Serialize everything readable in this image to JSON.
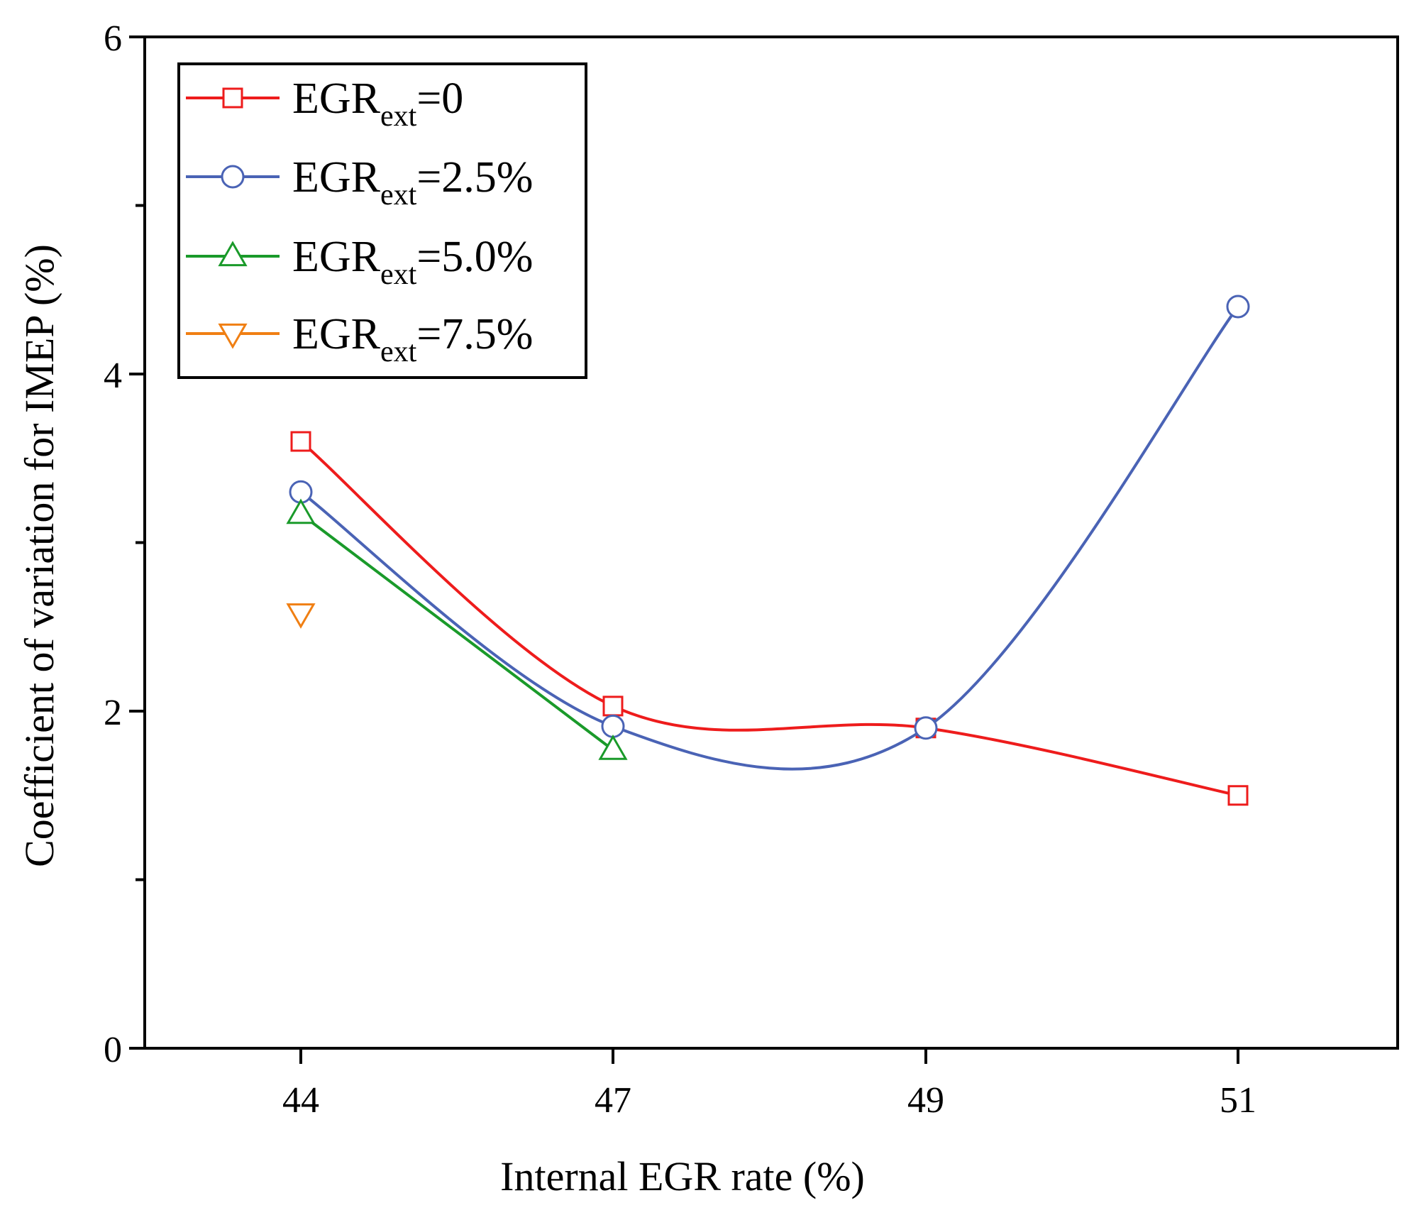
{
  "chart_data": {
    "type": "line",
    "title": "",
    "xlabel": "Internal EGR rate (%)",
    "ylabel": "Coefficient of variation for IMEP (%)",
    "categories": [
      "44",
      "47",
      "49",
      "51"
    ],
    "ylim": [
      0,
      6
    ],
    "y_ticks": [
      "0",
      "2",
      "4",
      "6"
    ],
    "y_minor_ticks": [
      1,
      3,
      5
    ],
    "grid": false,
    "legend_position": "top-left",
    "series": [
      {
        "name": "EGRext=0",
        "label_main": "EGR",
        "label_sub": "ext",
        "label_suffix": "=0",
        "color": "#ee1c1c",
        "marker": "square",
        "curve": "smooth",
        "values": [
          3.6,
          2.03,
          1.9,
          1.5
        ]
      },
      {
        "name": "EGRext=2.5%",
        "label_main": "EGR",
        "label_sub": "ext",
        "label_suffix": "=2.5%",
        "color": "#4a63b5",
        "marker": "circle",
        "curve": "smooth",
        "values": [
          3.3,
          1.91,
          1.9,
          4.4
        ]
      },
      {
        "name": "EGRext=5.0%",
        "label_main": "EGR",
        "label_sub": "ext",
        "label_suffix": "=5.0%",
        "color": "#1a9a2a",
        "marker": "triangle-up",
        "curve": "linear",
        "values": [
          3.17,
          1.77,
          null,
          null
        ]
      },
      {
        "name": "EGRext=7.5%",
        "label_main": "EGR",
        "label_sub": "ext",
        "label_suffix": "=7.5%",
        "color": "#f07f13",
        "marker": "triangle-down",
        "curve": "linear",
        "values": [
          2.58,
          null,
          null,
          null
        ]
      }
    ]
  }
}
